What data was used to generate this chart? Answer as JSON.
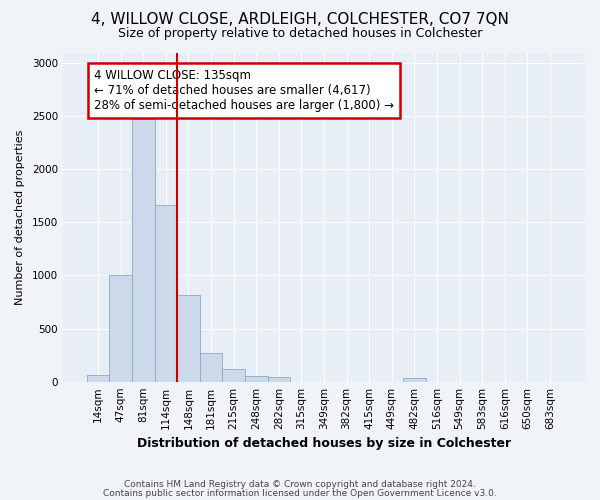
{
  "title": "4, WILLOW CLOSE, ARDLEIGH, COLCHESTER, CO7 7QN",
  "subtitle": "Size of property relative to detached houses in Colchester",
  "xlabel": "Distribution of detached houses by size in Colchester",
  "ylabel": "Number of detached properties",
  "footer_line1": "Contains HM Land Registry data © Crown copyright and database right 2024.",
  "footer_line2": "Contains public sector information licensed under the Open Government Licence v3.0.",
  "bins": [
    "14sqm",
    "47sqm",
    "81sqm",
    "114sqm",
    "148sqm",
    "181sqm",
    "215sqm",
    "248sqm",
    "282sqm",
    "315sqm",
    "349sqm",
    "382sqm",
    "415sqm",
    "449sqm",
    "482sqm",
    "516sqm",
    "549sqm",
    "583sqm",
    "616sqm",
    "650sqm",
    "683sqm"
  ],
  "values": [
    60,
    1000,
    2470,
    1660,
    820,
    270,
    120,
    55,
    45,
    0,
    0,
    0,
    0,
    0,
    35,
    0,
    0,
    0,
    0,
    0,
    0
  ],
  "bar_color": "#ccd9ea",
  "bar_edge_color": "#8aaac8",
  "vline_color": "#cc0000",
  "vline_pos": 3.5,
  "annotation_text": "4 WILLOW CLOSE: 135sqm\n← 71% of detached houses are smaller (4,617)\n28% of semi-detached houses are larger (1,800) →",
  "annotation_box_facecolor": "#ffffff",
  "annotation_box_edgecolor": "#cc0000",
  "ylim": [
    0,
    3100
  ],
  "yticks": [
    0,
    500,
    1000,
    1500,
    2000,
    2500,
    3000
  ],
  "background_color": "#f0f4f8",
  "plot_bg_color": "#e8eef5",
  "grid_color": "#ffffff",
  "title_fontsize": 11,
  "subtitle_fontsize": 9,
  "ylabel_fontsize": 8,
  "xlabel_fontsize": 9,
  "tick_fontsize": 7.5,
  "footer_fontsize": 6.5
}
